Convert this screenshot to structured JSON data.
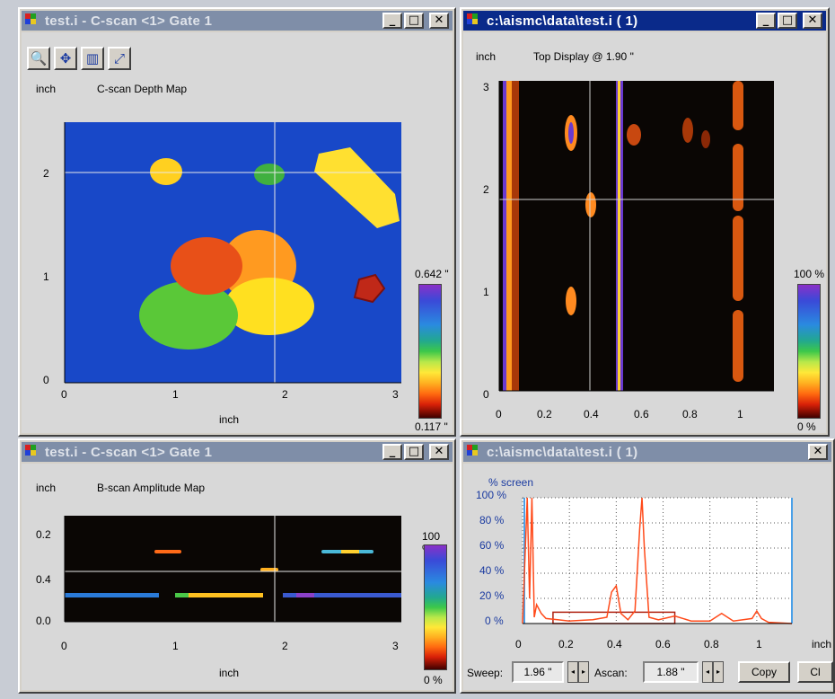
{
  "windows": {
    "cscan": {
      "title": "test.i - C-scan <1> Gate 1",
      "unit": "inch",
      "heading": "C-scan Depth Map",
      "xlabel": "inch",
      "x_ticks": [
        "0",
        "1",
        "2",
        "3"
      ],
      "y_ticks": [
        "2",
        "1",
        "0"
      ],
      "scale_max": "0.642 \"",
      "scale_min": "0.117 \""
    },
    "top": {
      "title": "c:\\aismc\\data\\test.i ( 1)",
      "unit": "inch",
      "heading": "Top Display @ 1.90 \"",
      "x_ticks": [
        "0",
        "0.2",
        "0.4",
        "0.6",
        "0.8",
        "1"
      ],
      "y_ticks": [
        "3",
        "2",
        "1",
        "0"
      ],
      "scale_max": "100 %",
      "scale_min": "0 %"
    },
    "bscan": {
      "title": "test.i - C-scan <1> Gate 1",
      "unit": "inch",
      "heading": "B-scan Amplitude Map",
      "xlabel": "inch",
      "x_ticks": [
        "0",
        "1",
        "2",
        "3"
      ],
      "y_ticks": [
        "0.2",
        "0.4",
        "0.0"
      ],
      "scale_max": "100 %",
      "scale_min": "0 %"
    },
    "ascan": {
      "title": "c:\\aismc\\data\\test.i ( 1)",
      "ylabel": "% screen",
      "y_ticks": [
        "100 %",
        "80 %",
        "60 %",
        "40 %",
        "20 %",
        "0 %"
      ],
      "x_ticks": [
        "0",
        "0.2",
        "0.4",
        "0.6",
        "0.8",
        "1"
      ],
      "x_unit": "inch",
      "sweep_label": "Sweep:",
      "sweep_value": "1.96 \"",
      "ascan_label": "Ascan:",
      "ascan_value": "1.88 \"",
      "copy_label": "Copy",
      "close_label": "Cl"
    }
  },
  "buttons": {
    "minimize": "_",
    "maximize": "□",
    "close": "✕"
  },
  "colors": {
    "plot_blue": "#1848c8",
    "title_active": "#0a2a8a",
    "title_inactive": "#7f8ea8",
    "trace": "#ff4a1a"
  },
  "chart_data": {
    "type": "line",
    "title": "",
    "ylabel": "% screen",
    "xlabel": "inch",
    "ylim": [
      0,
      100
    ],
    "xlim": [
      0,
      1.15
    ],
    "series": [
      {
        "values_x": [
          0.0,
          0.02,
          0.03,
          0.04,
          0.05,
          0.06,
          0.08,
          0.1,
          0.15,
          0.2,
          0.3,
          0.36,
          0.38,
          0.4,
          0.42,
          0.45,
          0.48,
          0.5,
          0.51,
          0.52,
          0.54,
          0.58,
          0.65,
          0.72,
          0.8,
          0.85,
          0.9,
          0.98,
          1.0,
          1.02,
          1.05,
          1.15
        ],
        "values": [
          0,
          100,
          20,
          100,
          5,
          15,
          8,
          4,
          3,
          2,
          3,
          5,
          25,
          30,
          8,
          3,
          10,
          75,
          100,
          60,
          5,
          3,
          6,
          2,
          2,
          8,
          2,
          4,
          10,
          4,
          1,
          0
        ]
      }
    ]
  }
}
